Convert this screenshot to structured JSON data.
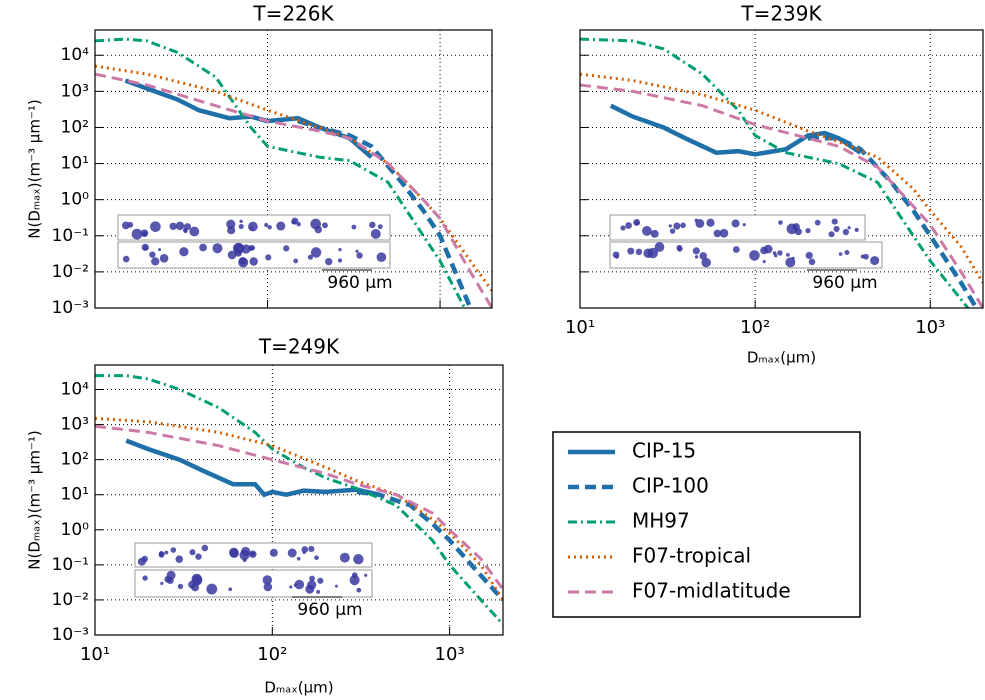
{
  "chart_data": [
    {
      "type": "line",
      "title": "T=226K",
      "xscale": "log",
      "yscale": "log",
      "grid": true,
      "xlim": [
        10,
        2000
      ],
      "ylim": [
        0.001,
        50000
      ],
      "xticks": [
        10,
        100,
        1000
      ],
      "yticks": [
        {
          "value": 0.001,
          "label": "10⁻³"
        },
        {
          "value": 0.01,
          "label": "10⁻²"
        },
        {
          "value": 0.1,
          "label": "10⁻¹"
        },
        {
          "value": 1,
          "label": "10⁰"
        },
        {
          "value": 10,
          "label": "10¹"
        },
        {
          "value": 100,
          "label": "10²"
        },
        {
          "value": 1000,
          "label": "10³"
        },
        {
          "value": 10000,
          "label": "10⁴"
        }
      ],
      "ylabel": "N(Dₘₐₓ)(m⁻³ μm⁻¹)",
      "annotation": "960 μm",
      "legend": false,
      "series": [
        {
          "name": "CIP-15",
          "color": "#1f6fa8",
          "linestyle": "solid",
          "x": [
            15,
            20,
            30,
            40,
            60,
            80,
            100,
            150,
            200,
            300,
            400
          ],
          "values": [
            2000,
            1200,
            600,
            300,
            180,
            200,
            150,
            180,
            100,
            50,
            15
          ]
        },
        {
          "name": "CIP-100",
          "color": "#1f6fa8",
          "linestyle": "dashed",
          "x": [
            150,
            200,
            300,
            400,
            600,
            800,
            1000,
            1500
          ],
          "values": [
            150,
            100,
            60,
            30,
            3,
            0.5,
            0.1,
            0.001
          ]
        },
        {
          "name": "MH97",
          "color": "#009e73",
          "linestyle": "dashdot",
          "x": [
            10,
            15,
            20,
            30,
            50,
            80,
            100,
            150,
            200,
            300,
            500,
            800,
            1000,
            1500
          ],
          "values": [
            25000,
            28000,
            25000,
            12000,
            2500,
            100,
            30,
            20,
            15,
            12,
            3,
            0.1,
            0.02,
            0.0005
          ]
        },
        {
          "name": "F07-tropical",
          "color": "#d55e00",
          "linestyle": "dotted",
          "x": [
            10,
            20,
            50,
            100,
            200,
            300,
            500,
            800,
            1000,
            1500,
            2000
          ],
          "values": [
            5000,
            3000,
            1000,
            300,
            100,
            50,
            10,
            1,
            0.3,
            0.02,
            0.003
          ]
        },
        {
          "name": "F07-midlatitude",
          "color": "#cc79a7",
          "linestyle": "dashed",
          "x": [
            10,
            20,
            50,
            100,
            200,
            300,
            500,
            800,
            1000,
            1500,
            2000
          ],
          "values": [
            3000,
            1500,
            400,
            150,
            80,
            50,
            10,
            1,
            0.3,
            0.01,
            0.001
          ]
        }
      ]
    },
    {
      "type": "line",
      "title": "T=239K",
      "xscale": "log",
      "yscale": "log",
      "grid": true,
      "xlim": [
        10,
        2000
      ],
      "ylim": [
        0.001,
        50000
      ],
      "xticks": [
        {
          "value": 10,
          "label": "10¹"
        },
        {
          "value": 100,
          "label": "10²"
        },
        {
          "value": 1000,
          "label": "10³"
        }
      ],
      "yticks": [
        0.001,
        0.01,
        0.1,
        1,
        10,
        100,
        1000,
        10000
      ],
      "xlabel": "Dₘₐₓ(μm)",
      "annotation": "960 μm",
      "legend": false,
      "series": [
        {
          "name": "CIP-15",
          "color": "#1f6fa8",
          "linestyle": "solid",
          "x": [
            15,
            20,
            30,
            40,
            60,
            80,
            100,
            150,
            200,
            250,
            300,
            400
          ],
          "values": [
            400,
            200,
            100,
            50,
            20,
            22,
            18,
            25,
            60,
            70,
            50,
            20
          ]
        },
        {
          "name": "CIP-100",
          "color": "#1f6fa8",
          "linestyle": "dashed",
          "x": [
            200,
            300,
            400,
            600,
            800,
            1000,
            1500,
            2000
          ],
          "values": [
            50,
            50,
            25,
            3,
            0.5,
            0.1,
            0.005,
            0.0005
          ]
        },
        {
          "name": "MH97",
          "color": "#009e73",
          "linestyle": "dashdot",
          "x": [
            10,
            20,
            30,
            50,
            80,
            100,
            150,
            200,
            300,
            500,
            800,
            1000,
            2000
          ],
          "values": [
            28000,
            25000,
            15000,
            3000,
            300,
            60,
            20,
            15,
            10,
            3,
            0.1,
            0.02,
            0.0003
          ]
        },
        {
          "name": "F07-tropical",
          "color": "#d55e00",
          "linestyle": "dotted",
          "x": [
            10,
            20,
            50,
            100,
            200,
            300,
            500,
            800,
            1000,
            1500,
            2000
          ],
          "values": [
            3000,
            2000,
            800,
            300,
            80,
            40,
            15,
            2,
            0.5,
            0.05,
            0.005
          ]
        },
        {
          "name": "F07-midlatitude",
          "color": "#cc79a7",
          "linestyle": "dashed",
          "x": [
            10,
            20,
            50,
            100,
            200,
            300,
            500,
            1000,
            1500,
            2000
          ],
          "values": [
            1500,
            1000,
            400,
            120,
            50,
            30,
            8,
            0.2,
            0.01,
            0.001
          ]
        }
      ]
    },
    {
      "type": "line",
      "title": "T=249K",
      "xscale": "log",
      "yscale": "log",
      "grid": true,
      "xlim": [
        10,
        2000
      ],
      "ylim": [
        0.001,
        50000
      ],
      "xticks": [
        {
          "value": 10,
          "label": "10¹"
        },
        {
          "value": 100,
          "label": "10²"
        },
        {
          "value": 1000,
          "label": "10³"
        }
      ],
      "yticks": [
        {
          "value": 0.001,
          "label": "10⁻³"
        },
        {
          "value": 0.01,
          "label": "10⁻²"
        },
        {
          "value": 0.1,
          "label": "10⁻¹"
        },
        {
          "value": 1,
          "label": "10⁰"
        },
        {
          "value": 10,
          "label": "10¹"
        },
        {
          "value": 100,
          "label": "10²"
        },
        {
          "value": 1000,
          "label": "10³"
        },
        {
          "value": 10000,
          "label": "10⁴"
        }
      ],
      "xlabel": "Dₘₐₓ(μm)",
      "ylabel": "N(Dₘₐₓ)(m⁻³ μm⁻¹)",
      "annotation": "960 μm",
      "legend": true,
      "series": [
        {
          "name": "CIP-15",
          "color": "#1f6fa8",
          "linestyle": "solid",
          "x": [
            15,
            20,
            30,
            40,
            60,
            80,
            90,
            100,
            120,
            150,
            200,
            300,
            400
          ],
          "values": [
            350,
            200,
            100,
            50,
            20,
            20,
            10,
            12,
            10,
            13,
            12,
            14,
            10
          ]
        },
        {
          "name": "CIP-100",
          "color": "#1f6fa8",
          "linestyle": "dashed",
          "x": [
            300,
            400,
            600,
            800,
            1000,
            1500,
            2000
          ],
          "values": [
            12,
            10,
            5,
            1.5,
            0.5,
            0.05,
            0.01
          ]
        },
        {
          "name": "MH97",
          "color": "#009e73",
          "linestyle": "dashdot",
          "x": [
            10,
            15,
            20,
            30,
            50,
            80,
            100,
            150,
            200,
            300,
            500,
            800,
            1000,
            1500,
            2000
          ],
          "values": [
            25000,
            25000,
            20000,
            10000,
            3000,
            600,
            200,
            60,
            30,
            15,
            5,
            0.5,
            0.1,
            0.01,
            0.002
          ]
        },
        {
          "name": "F07-tropical",
          "color": "#d55e00",
          "linestyle": "dotted",
          "x": [
            10,
            20,
            50,
            100,
            200,
            300,
            500,
            800,
            1000,
            1500,
            2000
          ],
          "values": [
            1500,
            1200,
            600,
            250,
            60,
            25,
            10,
            2,
            0.8,
            0.1,
            0.01
          ]
        },
        {
          "name": "F07-midlatitude",
          "color": "#cc79a7",
          "linestyle": "dashed",
          "x": [
            10,
            20,
            50,
            100,
            200,
            300,
            500,
            800,
            1000,
            1500,
            2000
          ],
          "values": [
            900,
            600,
            250,
            100,
            40,
            20,
            10,
            3,
            1,
            0.15,
            0.02
          ]
        }
      ]
    }
  ]
}
